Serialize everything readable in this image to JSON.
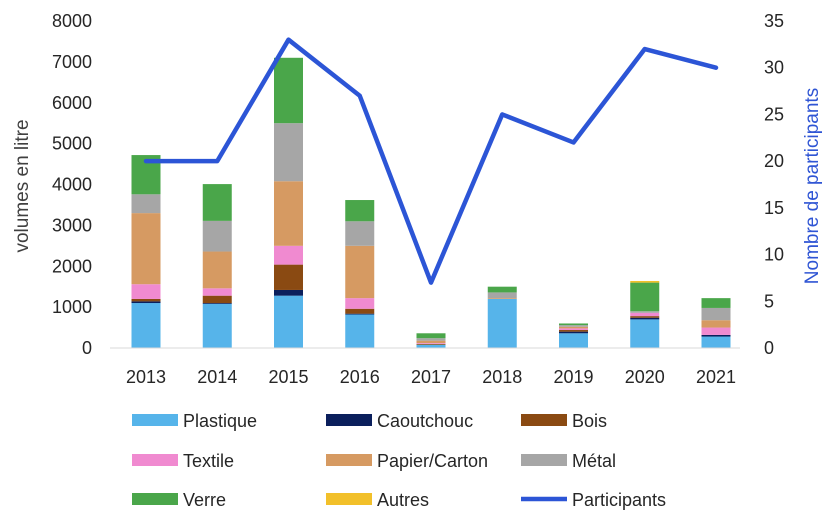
{
  "chart_data": {
    "type": "bar",
    "stacked": true,
    "categories": [
      "2013",
      "2014",
      "2015",
      "2016",
      "2017",
      "2018",
      "2019",
      "2020",
      "2021"
    ],
    "ylabel": "volumes en litre",
    "y2label": "Nombre de participants",
    "ylim": [
      0,
      8000
    ],
    "y2lim": [
      0,
      35
    ],
    "yticks": [
      "0",
      "1000",
      "2000",
      "3000",
      "4000",
      "5000",
      "6000",
      "7000",
      "8000"
    ],
    "y2ticks": [
      "0",
      "5",
      "10",
      "15",
      "20",
      "25",
      "30",
      "35"
    ],
    "series": [
      {
        "name": "Plastique",
        "color": "#56b4ea",
        "values": [
          1100,
          1080,
          1280,
          820,
          80,
          1200,
          360,
          700,
          280
        ]
      },
      {
        "name": "Caoutchouc",
        "color": "#0b1f5c",
        "values": [
          40,
          20,
          140,
          20,
          0,
          0,
          40,
          40,
          40
        ]
      },
      {
        "name": "Bois",
        "color": "#8a4a12",
        "values": [
          60,
          180,
          620,
          120,
          20,
          0,
          40,
          40,
          0
        ]
      },
      {
        "name": "Textile",
        "color": "#f08ad0",
        "values": [
          360,
          180,
          460,
          260,
          20,
          0,
          40,
          80,
          180
        ]
      },
      {
        "name": "Papier/Carton",
        "color": "#d69a62",
        "values": [
          1740,
          900,
          1580,
          1280,
          60,
          20,
          40,
          0,
          180
        ]
      },
      {
        "name": "Métal",
        "color": "#a6a6a6",
        "values": [
          460,
          750,
          1420,
          600,
          60,
          140,
          40,
          40,
          300
        ]
      },
      {
        "name": "Verre",
        "color": "#4aa64a",
        "values": [
          960,
          900,
          1600,
          520,
          120,
          140,
          40,
          700,
          240
        ]
      },
      {
        "name": "Autres",
        "color": "#f2c02a",
        "values": [
          0,
          0,
          0,
          0,
          0,
          0,
          0,
          40,
          0
        ]
      }
    ],
    "line_series": {
      "name": "Participants",
      "color": "#2c55d6",
      "axis": "right",
      "values": [
        20,
        20,
        33,
        27,
        7,
        25,
        22,
        32,
        30
      ]
    },
    "legend_position": "bottom",
    "grid": false
  }
}
